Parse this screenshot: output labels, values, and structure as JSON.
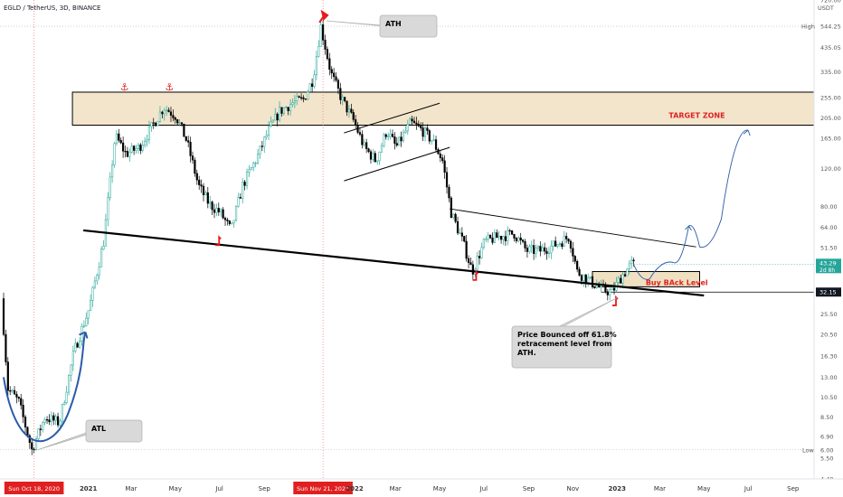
{
  "header": {
    "symbol": "EGLD / TetherUS, 3D, BINANCE"
  },
  "price_scale": {
    "currency": "USDT",
    "ticks": [
      "720.00",
      "435.05",
      "335.00",
      "255.00",
      "205.00",
      "165.00",
      "120.00",
      "80.00",
      "64.00",
      "51.50",
      "32.15",
      "25.50",
      "20.50",
      "16.30",
      "13.00",
      "10.50",
      "8.50",
      "6.90",
      "5.50",
      "4.40"
    ],
    "high_label": "High",
    "high_value": "544.25",
    "low_label": "Low",
    "low_value": "6.00",
    "last_value": "43.29",
    "countdown": "2d 8h",
    "support_value": "32.15"
  },
  "time_axis": {
    "labels": [
      "Sun Oct 18, 2020",
      "2021",
      "Mar",
      "May",
      "Jul",
      "Sep",
      "Sun Nov 21, 2021",
      "2022",
      "Mar",
      "May",
      "Jul",
      "Sep",
      "Nov",
      "2023",
      "Mar",
      "May",
      "Jul",
      "Sep"
    ]
  },
  "annotations": {
    "ath": "ATH",
    "atl": "ATL",
    "target_zone": "TARGET ZONE",
    "buy_back": "Buy BAck Level",
    "bounce_note": [
      "Price Bounced off 61.8%",
      "retracement level from",
      "ATH."
    ]
  },
  "colors": {
    "bull": "#26a69a",
    "bear": "#000000",
    "zone_fill": "#f0e0c2",
    "marker_red": "#e81b1b",
    "label_red": "#e02020",
    "curve_blue": "#2a5aa8",
    "vline_red": "#f25b5b",
    "support_gray": "#9e9e9e"
  },
  "chart_data": {
    "type": "candlestick",
    "title": "EGLD / TetherUS, 3D, BINANCE",
    "y_unit": "USDT",
    "y_scale": "log",
    "ylim": [
      4.4,
      720
    ],
    "xlim": [
      "2020-09-01",
      "2023-09-30"
    ],
    "grid": false,
    "legend": "none",
    "path": [
      [
        "2020-09-06",
        30
      ],
      [
        "2020-09-15",
        11.5
      ],
      [
        "2020-09-30",
        10
      ],
      [
        "2020-10-18",
        6
      ],
      [
        "2020-11-05",
        8.5
      ],
      [
        "2020-11-25",
        8
      ],
      [
        "2020-12-15",
        17
      ],
      [
        "2021-01-05",
        27
      ],
      [
        "2021-01-25",
        55
      ],
      [
        "2021-02-10",
        170
      ],
      [
        "2021-02-25",
        140
      ],
      [
        "2021-03-15",
        150
      ],
      [
        "2021-04-01",
        185
      ],
      [
        "2021-04-18",
        230
      ],
      [
        "2021-05-05",
        210
      ],
      [
        "2021-05-20",
        160
      ],
      [
        "2021-06-05",
        100
      ],
      [
        "2021-06-20",
        82
      ],
      [
        "2021-07-05",
        75
      ],
      [
        "2021-07-20",
        62
      ],
      [
        "2021-08-05",
        100
      ],
      [
        "2021-08-25",
        135
      ],
      [
        "2021-09-10",
        180
      ],
      [
        "2021-09-25",
        220
      ],
      [
        "2021-10-12",
        240
      ],
      [
        "2021-10-28",
        250
      ],
      [
        "2021-11-10",
        310
      ],
      [
        "2021-11-21",
        544.25
      ],
      [
        "2021-12-05",
        330
      ],
      [
        "2021-12-20",
        250
      ],
      [
        "2022-01-05",
        200
      ],
      [
        "2022-01-20",
        150
      ],
      [
        "2022-02-05",
        130
      ],
      [
        "2022-02-20",
        180
      ],
      [
        "2022-03-05",
        150
      ],
      [
        "2022-03-25",
        195
      ],
      [
        "2022-04-10",
        180
      ],
      [
        "2022-04-25",
        160
      ],
      [
        "2022-05-08",
        130
      ],
      [
        "2022-05-20",
        75
      ],
      [
        "2022-06-05",
        55
      ],
      [
        "2022-06-18",
        40
      ],
      [
        "2022-07-05",
        55
      ],
      [
        "2022-07-25",
        58
      ],
      [
        "2022-08-15",
        60
      ],
      [
        "2022-09-01",
        50
      ],
      [
        "2022-09-20",
        50
      ],
      [
        "2022-10-10",
        53
      ],
      [
        "2022-10-30",
        58
      ],
      [
        "2022-11-10",
        40
      ],
      [
        "2022-11-28",
        36
      ],
      [
        "2022-12-15",
        33
      ],
      [
        "2022-12-28",
        32.15
      ],
      [
        "2023-01-10",
        38
      ],
      [
        "2023-01-24",
        43.29
      ]
    ],
    "target_zone": {
      "from": "2020-12-10",
      "to": "2023-09-30",
      "low": 190,
      "high": 270
    },
    "buy_back_zone": {
      "from": "2022-11-28",
      "to": "2023-04-25",
      "low": 34,
      "high": 40
    },
    "support_line": {
      "value": 32.15
    },
    "high": {
      "date": "2021-11-21",
      "value": 544.25
    },
    "low": {
      "date": "2020-10-18",
      "value": 6.0
    },
    "trendlines": [
      {
        "name": "long support",
        "points": [
          [
            "2020-12-25",
            62
          ],
          [
            "2023-05-01",
            31
          ]
        ]
      },
      {
        "name": "descending resistance",
        "points": [
          [
            "2022-05-15",
            78
          ],
          [
            "2023-04-20",
            52
          ]
        ]
      },
      {
        "name": "channel upper",
        "points": [
          [
            "2021-12-20",
            175
          ],
          [
            "2022-05-01",
            240
          ]
        ]
      },
      {
        "name": "channel lower",
        "points": [
          [
            "2021-12-20",
            105
          ],
          [
            "2022-05-15",
            150
          ]
        ]
      }
    ],
    "projection": [
      [
        "2023-01-24",
        43
      ],
      [
        "2023-02-15",
        37
      ],
      [
        "2023-03-20",
        44
      ],
      [
        "2023-04-10",
        65
      ],
      [
        "2023-04-25",
        52
      ],
      [
        "2023-05-25",
        70
      ],
      [
        "2023-07-01",
        180
      ]
    ],
    "markers": [
      {
        "kind": "anchor",
        "date": "2021-02-20",
        "value": 270
      },
      {
        "kind": "anchor",
        "date": "2021-04-23",
        "value": 270
      },
      {
        "kind": "flag",
        "date": "2021-11-21",
        "value": 600
      },
      {
        "kind": "bounce",
        "date": "2021-06-28",
        "value": 55
      },
      {
        "kind": "bounce",
        "date": "2022-06-18",
        "value": 38
      },
      {
        "kind": "bounce",
        "date": "2022-12-28",
        "value": 29
      }
    ],
    "callouts": [
      {
        "label": "ATH",
        "date": "2022-01-10",
        "value": 790
      },
      {
        "label": "ATL",
        "date": "2020-12-30",
        "value": 6.5
      },
      {
        "label": "TARGET ZONE",
        "date": "2023-06-01",
        "value": 215
      },
      {
        "label": "Buy BAck Level",
        "date": "2023-03-20",
        "value": 37
      },
      {
        "label": "Price Bounced off 61.8% retracement level from ATH.",
        "date": "2022-09-15",
        "value": 18
      }
    ]
  }
}
